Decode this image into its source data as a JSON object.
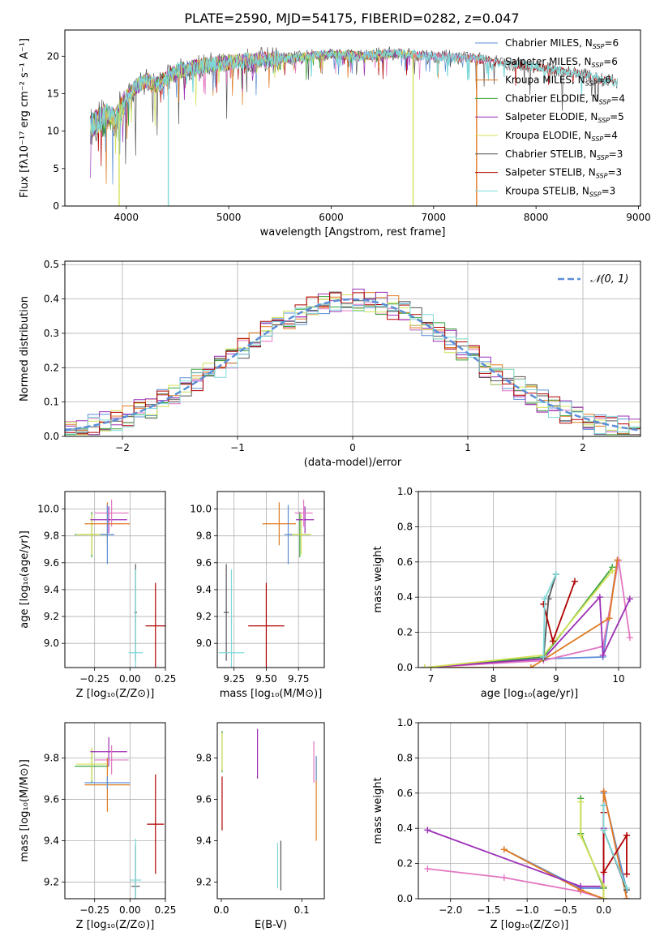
{
  "figure_title": "PLATE=2590, MJD=54175, FIBERID=0282, z=0.047",
  "colors": {
    "chabrier_miles": "#5b8fd6",
    "salpeter_miles": "#e377c2",
    "kroupa_miles": "#e07b22",
    "chabrier_elodie": "#3aa33a",
    "salpeter_elodie": "#9b2fb5",
    "kroupa_elodie": "#d4e157",
    "chabrier_stelib": "#555555",
    "salpeter_stelib": "#b00000",
    "kroupa_stelib": "#7fd8d8",
    "gaussian": "#5b8fd6"
  },
  "chart_data": [
    {
      "id": "spectrum",
      "type": "line",
      "xlabel": "wavelength [Angstrom, rest frame]",
      "ylabel": "Flux [fλ10⁻¹⁷ erg cm⁻² s⁻¹ A⁻¹]",
      "xlim": [
        3400,
        9020
      ],
      "ylim": [
        0,
        23.5
      ],
      "xticks": [
        4000,
        5000,
        6000,
        7000,
        8000,
        9000
      ],
      "yticks": [
        0,
        5,
        10,
        15,
        20
      ],
      "legend_position": "top-right",
      "legend": [
        {
          "name": "Chabrier MILES, N",
          "sub": "SSP",
          "suffix": "=6",
          "color_key": "chabrier_miles"
        },
        {
          "name": "Salpeter MILES, N",
          "sub": "SSP",
          "suffix": "=6",
          "color_key": "salpeter_miles"
        },
        {
          "name": "Kroupa MILES, N",
          "sub": "SSP",
          "suffix": "=6",
          "color_key": "kroupa_miles"
        },
        {
          "name": "Chabrier ELODIE, N",
          "sub": "SSP",
          "suffix": "=4",
          "color_key": "chabrier_elodie"
        },
        {
          "name": "Salpeter ELODIE, N",
          "sub": "SSP",
          "suffix": "=5",
          "color_key": "salpeter_elodie"
        },
        {
          "name": "Kroupa ELODIE, N",
          "sub": "SSP",
          "suffix": "=4",
          "color_key": "kroupa_elodie"
        },
        {
          "name": "Chabrier STELIB, N",
          "sub": "SSP",
          "suffix": "=3",
          "color_key": "chabrier_stelib"
        },
        {
          "name": "Salpeter STELIB, N",
          "sub": "SSP",
          "suffix": "=3",
          "color_key": "salpeter_stelib"
        },
        {
          "name": "Kroupa STELIB, N",
          "sub": "SSP",
          "suffix": "=3",
          "color_key": "kroupa_stelib"
        }
      ],
      "continuum": {
        "x": [
          3650,
          3700,
          3800,
          3900,
          4000,
          4100,
          4200,
          4300,
          4400,
          4500,
          4700,
          5000,
          5300,
          5600,
          6000,
          6300,
          6600,
          7000,
          7400,
          7600,
          7800,
          8000,
          8200,
          8400,
          8600,
          8800
        ],
        "y": [
          10.5,
          11.2,
          12.0,
          11.5,
          14.5,
          16.0,
          16.8,
          16.2,
          17.2,
          18.0,
          18.6,
          19.2,
          19.5,
          19.7,
          20.3,
          20.0,
          20.4,
          20.0,
          19.7,
          19.2,
          18.8,
          18.6,
          18.1,
          17.8,
          17.0,
          16.5
        ]
      },
      "dropouts": [
        {
          "x": 3930,
          "color_key": "kroupa_elodie"
        },
        {
          "x": 4410,
          "color_key": "kroupa_stelib"
        },
        {
          "x": 6800,
          "color_key": "kroupa_elodie"
        },
        {
          "x": 7420,
          "color_key": "kroupa_miles"
        }
      ],
      "spectrum_end": {
        "miles": 7410,
        "elodie": 6800,
        "stelib": 8800
      }
    },
    {
      "id": "residuals",
      "type": "line",
      "xlabel": "(data-model)/error",
      "ylabel": "Normed distribution",
      "xlim": [
        -2.5,
        2.5
      ],
      "ylim": [
        0,
        0.51
      ],
      "xticks": [
        -2,
        -1,
        0,
        1,
        2
      ],
      "yticks": [
        0.0,
        0.1,
        0.2,
        0.3,
        0.4,
        0.5
      ],
      "grid": true,
      "legend_position": "top-right",
      "legend_label": "𝒩(0, 1)",
      "gaussian": {
        "mean": 0,
        "sigma": 1
      }
    },
    {
      "id": "age_vs_Z",
      "type": "scatter",
      "xlabel": "Z [log₁₀(Z/Z⊙)]",
      "ylabel": "age  [log₁₀(age/yr)]",
      "xlim": [
        -0.46,
        0.25
      ],
      "ylim": [
        8.82,
        10.13
      ],
      "xticks": [
        -0.25,
        0.0,
        0.25
      ],
      "yticks": [
        9.0,
        9.2,
        9.4,
        9.6,
        9.8,
        10.0
      ],
      "grid": true,
      "points": [
        {
          "x": -0.27,
          "y": 9.81,
          "xerr": 0.12,
          "yerr": 0.17,
          "color_key": "chabrier_elodie"
        },
        {
          "x": -0.27,
          "y": 9.81,
          "xerr": 0.11,
          "yerr": 0.15,
          "color_key": "kroupa_elodie"
        },
        {
          "x": -0.15,
          "y": 9.92,
          "xerr": 0.13,
          "yerr": 0.1,
          "color_key": "salpeter_elodie"
        },
        {
          "x": -0.13,
          "y": 9.97,
          "xerr": 0.12,
          "yerr": 0.1,
          "color_key": "salpeter_miles"
        },
        {
          "x": -0.16,
          "y": 9.89,
          "xerr": 0.16,
          "yerr": 0.16,
          "color_key": "kroupa_miles"
        },
        {
          "x": -0.16,
          "y": 9.81,
          "xerr": 0.05,
          "yerr": 0.22,
          "color_key": "chabrier_miles"
        },
        {
          "x": 0.04,
          "y": 9.23,
          "xerr": 0.01,
          "yerr": 0.36,
          "color_key": "chabrier_stelib"
        },
        {
          "x": 0.04,
          "y": 8.93,
          "xerr": 0.05,
          "yerr": 0.62,
          "color_key": "kroupa_stelib"
        },
        {
          "x": 0.18,
          "y": 9.13,
          "xerr": 0.07,
          "yerr": 0.32,
          "color_key": "salpeter_stelib"
        }
      ]
    },
    {
      "id": "age_vs_mass",
      "type": "scatter",
      "xlabel": "mass [log₁₀(M/M⊙)]",
      "ylabel": "",
      "xlim": [
        9.12,
        9.95
      ],
      "ylim": [
        8.82,
        10.13
      ],
      "xticks": [
        9.25,
        9.5,
        9.75
      ],
      "yticks": [
        9.0,
        9.2,
        9.4,
        9.6,
        9.8,
        10.0
      ],
      "grid": true,
      "points": [
        {
          "x": 9.76,
          "y": 9.81,
          "xerr": 0.08,
          "yerr": 0.17,
          "color_key": "chabrier_elodie"
        },
        {
          "x": 9.77,
          "y": 9.81,
          "xerr": 0.08,
          "yerr": 0.15,
          "color_key": "kroupa_elodie"
        },
        {
          "x": 9.8,
          "y": 9.92,
          "xerr": 0.07,
          "yerr": 0.1,
          "color_key": "salpeter_elodie"
        },
        {
          "x": 9.79,
          "y": 9.97,
          "xerr": 0.07,
          "yerr": 0.1,
          "color_key": "salpeter_miles"
        },
        {
          "x": 9.6,
          "y": 9.89,
          "xerr": 0.13,
          "yerr": 0.16,
          "color_key": "kroupa_miles"
        },
        {
          "x": 9.67,
          "y": 9.81,
          "xerr": 0.03,
          "yerr": 0.22,
          "color_key": "chabrier_miles"
        },
        {
          "x": 9.19,
          "y": 9.23,
          "xerr": 0.02,
          "yerr": 0.36,
          "color_key": "chabrier_stelib"
        },
        {
          "x": 9.23,
          "y": 8.93,
          "xerr": 0.1,
          "yerr": 0.62,
          "color_key": "kroupa_stelib"
        },
        {
          "x": 9.5,
          "y": 9.13,
          "xerr": 0.14,
          "yerr": 0.32,
          "color_key": "salpeter_stelib"
        }
      ]
    },
    {
      "id": "mass_weight_vs_age",
      "type": "line",
      "xlabel": "age  [log₁₀(age/yr)]",
      "ylabel": "mass weight",
      "xlim": [
        6.8,
        10.35
      ],
      "ylim": [
        0,
        1.0
      ],
      "xticks": [
        7,
        8,
        9,
        10
      ],
      "yticks": [
        0.0,
        0.2,
        0.4,
        0.6,
        0.8,
        1.0
      ],
      "grid": true,
      "series": [
        {
          "color_key": "chabrier_miles",
          "x": [
            6.9,
            8.8,
            9.75,
            9.98
          ],
          "y": [
            0.0,
            0.05,
            0.06,
            0.61
          ]
        },
        {
          "color_key": "salpeter_miles",
          "x": [
            6.9,
            8.8,
            9.75,
            10.0,
            10.18
          ],
          "y": [
            0.0,
            0.04,
            0.12,
            0.61,
            0.17
          ]
        },
        {
          "color_key": "kroupa_miles",
          "x": [
            6.9,
            8.6,
            9.85,
            9.98
          ],
          "y": [
            0.0,
            0.0,
            0.28,
            0.61
          ]
        },
        {
          "color_key": "chabrier_elodie",
          "x": [
            6.9,
            8.8,
            9.9
          ],
          "y": [
            0.0,
            0.06,
            0.57
          ]
        },
        {
          "color_key": "salpeter_elodie",
          "x": [
            6.9,
            8.8,
            9.7,
            9.75,
            10.18
          ],
          "y": [
            0.0,
            0.05,
            0.4,
            0.07,
            0.39
          ]
        },
        {
          "color_key": "kroupa_elodie",
          "x": [
            6.9,
            8.8,
            9.9
          ],
          "y": [
            0.0,
            0.07,
            0.55
          ]
        },
        {
          "color_key": "chabrier_stelib",
          "x": [
            8.8,
            8.88,
            9.0
          ],
          "y": [
            0.05,
            0.39,
            0.53
          ]
        },
        {
          "color_key": "salpeter_stelib",
          "x": [
            8.8,
            8.95,
            9.3
          ],
          "y": [
            0.36,
            0.15,
            0.49
          ]
        },
        {
          "color_key": "kroupa_stelib",
          "x": [
            8.8,
            8.82,
            9.0
          ],
          "y": [
            0.06,
            0.39,
            0.53
          ]
        }
      ]
    },
    {
      "id": "mass_vs_Z",
      "type": "scatter",
      "xlabel": "Z [log₁₀(Z/Z⊙)]",
      "ylabel": "mass [log₁₀(M/M⊙)]",
      "xlim": [
        -0.46,
        0.25
      ],
      "ylim": [
        9.12,
        9.97
      ],
      "xticks": [
        -0.25,
        0.0,
        0.25
      ],
      "yticks": [
        9.2,
        9.4,
        9.6,
        9.8
      ],
      "grid": true,
      "points": [
        {
          "x": -0.27,
          "y": 9.76,
          "xerr": 0.12,
          "yerr": 0.08,
          "color_key": "chabrier_elodie"
        },
        {
          "x": -0.27,
          "y": 9.77,
          "xerr": 0.11,
          "yerr": 0.08,
          "color_key": "kroupa_elodie"
        },
        {
          "x": -0.15,
          "y": 9.83,
          "xerr": 0.13,
          "yerr": 0.07,
          "color_key": "salpeter_elodie"
        },
        {
          "x": -0.13,
          "y": 9.79,
          "xerr": 0.12,
          "yerr": 0.07,
          "color_key": "salpeter_miles"
        },
        {
          "x": -0.16,
          "y": 9.67,
          "xerr": 0.16,
          "yerr": 0.13,
          "color_key": "kroupa_miles"
        },
        {
          "x": -0.16,
          "y": 9.68,
          "xerr": 0.16,
          "yerr": 0.03,
          "color_key": "chabrier_miles"
        },
        {
          "x": 0.04,
          "y": 9.18,
          "xerr": 0.03,
          "yerr": 0.2,
          "color_key": "chabrier_stelib"
        },
        {
          "x": 0.04,
          "y": 9.21,
          "xerr": 0.04,
          "yerr": 0.2,
          "color_key": "kroupa_stelib"
        },
        {
          "x": 0.18,
          "y": 9.48,
          "xerr": 0.06,
          "yerr": 0.24,
          "color_key": "salpeter_stelib"
        }
      ]
    },
    {
      "id": "mass_vs_ebv",
      "type": "scatter",
      "xlabel": "E(B-V)",
      "ylabel": "",
      "xlim": [
        -0.005,
        0.128
      ],
      "ylim": [
        9.12,
        9.97
      ],
      "xticks": [
        0.0,
        0.1
      ],
      "yticks": [
        9.2,
        9.4,
        9.6,
        9.8
      ],
      "grid": false,
      "points": [
        {
          "x": 0.001,
          "y": 9.83,
          "xerr": 0,
          "yerr": 0.1,
          "color_key": "chabrier_elodie"
        },
        {
          "x": 0.001,
          "y": 9.83,
          "xerr": 0,
          "yerr": 0.09,
          "color_key": "kroupa_elodie"
        },
        {
          "x": 0.045,
          "y": 9.82,
          "xerr": 0,
          "yerr": 0.12,
          "color_key": "salpeter_elodie"
        },
        {
          "x": 0.115,
          "y": 9.78,
          "xerr": 0,
          "yerr": 0.1,
          "color_key": "salpeter_miles"
        },
        {
          "x": 0.118,
          "y": 9.6,
          "xerr": 0,
          "yerr": 0.2,
          "color_key": "kroupa_miles"
        },
        {
          "x": 0.118,
          "y": 9.75,
          "xerr": 0,
          "yerr": 0.06,
          "color_key": "chabrier_miles"
        },
        {
          "x": 0.074,
          "y": 9.28,
          "xerr": 0,
          "yerr": 0.12,
          "color_key": "chabrier_stelib"
        },
        {
          "x": 0.07,
          "y": 9.28,
          "xerr": 0,
          "yerr": 0.11,
          "color_key": "kroupa_stelib"
        },
        {
          "x": 0.001,
          "y": 9.58,
          "xerr": 0,
          "yerr": 0.13,
          "color_key": "salpeter_stelib"
        }
      ]
    },
    {
      "id": "mass_weight_vs_Z",
      "type": "line",
      "xlabel": "Z [log₁₀(Z/Z⊙)]",
      "ylabel": "mass weight",
      "xlim": [
        -2.42,
        0.48
      ],
      "ylim": [
        0,
        1.0
      ],
      "xticks": [
        -2.0,
        -1.5,
        -1.0,
        -0.5,
        0.0
      ],
      "yticks": [
        0.0,
        0.2,
        0.4,
        0.6,
        0.8,
        1.0
      ],
      "grid": true,
      "series": [
        {
          "color_key": "chabrier_miles",
          "x": [
            -1.3,
            -0.3,
            0.0,
            0.0,
            0.3
          ],
          "y": [
            0.28,
            0.06,
            0.06,
            0.6,
            0.05
          ]
        },
        {
          "color_key": "salpeter_miles",
          "x": [
            -2.3,
            -1.3,
            -0.3,
            0.0,
            0.0,
            0.3
          ],
          "y": [
            0.17,
            0.12,
            0.04,
            0.0,
            0.61,
            0.0
          ]
        },
        {
          "color_key": "kroupa_miles",
          "x": [
            -1.3,
            -0.3,
            0.0,
            0.0,
            0.3
          ],
          "y": [
            0.28,
            0.05,
            0.0,
            0.61,
            0.0
          ]
        },
        {
          "color_key": "chabrier_elodie",
          "x": [
            -0.3,
            -0.3,
            0.0,
            0.0
          ],
          "y": [
            0.57,
            0.37,
            0.06,
            0.0
          ]
        },
        {
          "color_key": "salpeter_elodie",
          "x": [
            -2.3,
            -0.3,
            0.0,
            0.0
          ],
          "y": [
            0.39,
            0.07,
            0.07,
            0.4
          ]
        },
        {
          "color_key": "kroupa_elodie",
          "x": [
            -0.3,
            -0.3,
            0.0,
            0.0
          ],
          "y": [
            0.55,
            0.36,
            0.07,
            0.0
          ]
        },
        {
          "color_key": "chabrier_stelib",
          "x": [
            0.0,
            0.0,
            0.3
          ],
          "y": [
            0.53,
            0.39,
            0.05
          ]
        },
        {
          "color_key": "salpeter_stelib",
          "x": [
            0.0,
            0.0,
            0.3,
            0.3
          ],
          "y": [
            0.49,
            0.15,
            0.36,
            0.14
          ]
        },
        {
          "color_key": "kroupa_stelib",
          "x": [
            0.0,
            0.0,
            0.3
          ],
          "y": [
            0.53,
            0.39,
            0.06
          ]
        }
      ]
    }
  ]
}
